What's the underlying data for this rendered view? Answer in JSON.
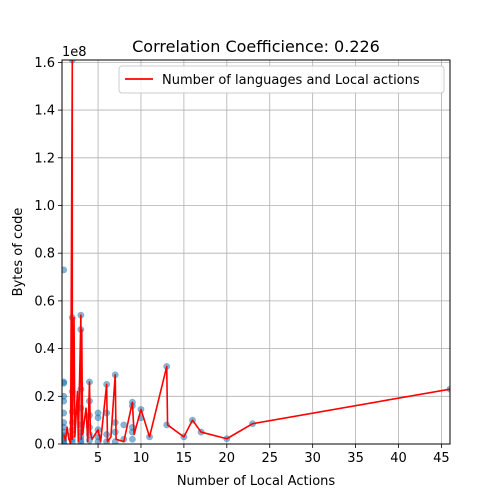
{
  "chart_data": {
    "type": "scatter",
    "title": "Correlation Coefficience: 0.226",
    "xlabel": "Number of Local Actions",
    "ylabel": "Bytes of code",
    "y_scale_label": "1e8",
    "xlim": [
      0.8,
      46
    ],
    "ylim": [
      0,
      161000000.0
    ],
    "x_ticks": [
      5,
      10,
      15,
      20,
      25,
      30,
      35,
      40,
      45
    ],
    "x_tick_labels": [
      "5",
      "10",
      "15",
      "20",
      "25",
      "30",
      "35",
      "40",
      "45"
    ],
    "y_ticks": [
      0,
      20000000,
      40000000,
      60000000,
      80000000,
      100000000,
      120000000,
      140000000,
      160000000
    ],
    "y_tick_labels": [
      "0.0",
      "0.2",
      "0.4",
      "0.6",
      "0.8",
      "1.0",
      "1.2",
      "1.4",
      "1.6"
    ],
    "grid": true,
    "legend_position": "top-right",
    "colors": {
      "scatter": "#1f77b4",
      "line": "#ff0000"
    },
    "series": [
      {
        "kind": "scatter",
        "points": [
          [
            1,
            73000000
          ],
          [
            1,
            26000000
          ],
          [
            1,
            25500000
          ],
          [
            1,
            20000000
          ],
          [
            1,
            18000000
          ],
          [
            1,
            13000000
          ],
          [
            1,
            9000000
          ],
          [
            1,
            7000000
          ],
          [
            1,
            5000000
          ],
          [
            1,
            3500000
          ],
          [
            1,
            2000000
          ],
          [
            1,
            1000000
          ],
          [
            1,
            300000
          ],
          [
            2,
            161000000
          ],
          [
            2,
            53000000
          ],
          [
            2,
            22000000
          ],
          [
            2,
            13500000
          ],
          [
            2,
            9000000
          ],
          [
            2,
            6000000
          ],
          [
            2,
            4000000
          ],
          [
            2,
            2000000
          ],
          [
            2,
            800000
          ],
          [
            3,
            54000000
          ],
          [
            3,
            48000000
          ],
          [
            3,
            23000000
          ],
          [
            3,
            15000000
          ],
          [
            3,
            8000000
          ],
          [
            3,
            5000000
          ],
          [
            3,
            3000000
          ],
          [
            3,
            1500000
          ],
          [
            3,
            500000
          ],
          [
            4,
            26000000
          ],
          [
            4,
            18000000
          ],
          [
            4,
            12000000
          ],
          [
            4,
            7000000
          ],
          [
            4,
            4000000
          ],
          [
            4,
            1500000
          ],
          [
            5,
            13000000
          ],
          [
            5,
            11000000
          ],
          [
            5,
            6000000
          ],
          [
            5,
            3000000
          ],
          [
            5,
            1000000
          ],
          [
            6,
            25000000
          ],
          [
            6,
            13000000
          ],
          [
            6,
            4000000
          ],
          [
            6,
            1000000
          ],
          [
            7,
            29000000
          ],
          [
            7,
            9000000
          ],
          [
            7,
            5000000
          ],
          [
            7,
            1000000
          ],
          [
            8,
            8000000
          ],
          [
            8,
            2000000
          ],
          [
            9,
            17500000
          ],
          [
            9,
            16000000
          ],
          [
            9,
            7000000
          ],
          [
            9,
            5000000
          ],
          [
            9,
            2000000
          ],
          [
            10,
            14500000
          ],
          [
            10,
            11000000
          ],
          [
            11,
            3000000
          ],
          [
            13,
            32500000
          ],
          [
            13,
            8000000
          ],
          [
            15,
            3000000
          ],
          [
            16,
            10000000
          ],
          [
            17,
            5000000
          ],
          [
            20,
            2200000
          ],
          [
            23,
            8500000
          ],
          [
            46,
            23000000
          ]
        ]
      },
      {
        "kind": "line",
        "name": "Number of languages and Local actions",
        "points": [
          [
            1,
            4000000
          ],
          [
            1.2,
            1500000
          ],
          [
            1.4,
            7000000
          ],
          [
            1.6,
            2000000
          ],
          [
            1.8,
            500000
          ],
          [
            2,
            161000000
          ],
          [
            2,
            2000000
          ],
          [
            2.2,
            53000000
          ],
          [
            2.3,
            3000000
          ],
          [
            2.6,
            22000000
          ],
          [
            2.7,
            1000000
          ],
          [
            3,
            54000000
          ],
          [
            3.05,
            2000000
          ],
          [
            3.1,
            48000000
          ],
          [
            3.2,
            4000000
          ],
          [
            3.6,
            15000000
          ],
          [
            3.8,
            1000000
          ],
          [
            4,
            26000000
          ],
          [
            4.1,
            5000000
          ],
          [
            4.3,
            2000000
          ],
          [
            5,
            6000000
          ],
          [
            5.3,
            1000000
          ],
          [
            6,
            25000000
          ],
          [
            6.1,
            1000000
          ],
          [
            6.5,
            3000000
          ],
          [
            7,
            29000000
          ],
          [
            7.1,
            2000000
          ],
          [
            8,
            1000000
          ],
          [
            9,
            17500000
          ],
          [
            9.2,
            4000000
          ],
          [
            10,
            14500000
          ],
          [
            11,
            3000000
          ],
          [
            13,
            32500000
          ],
          [
            13.1,
            8000000
          ],
          [
            15,
            3000000
          ],
          [
            16,
            10000000
          ],
          [
            17,
            5000000
          ],
          [
            20,
            2200000
          ],
          [
            23,
            8500000
          ],
          [
            46,
            23000000
          ]
        ]
      }
    ]
  }
}
